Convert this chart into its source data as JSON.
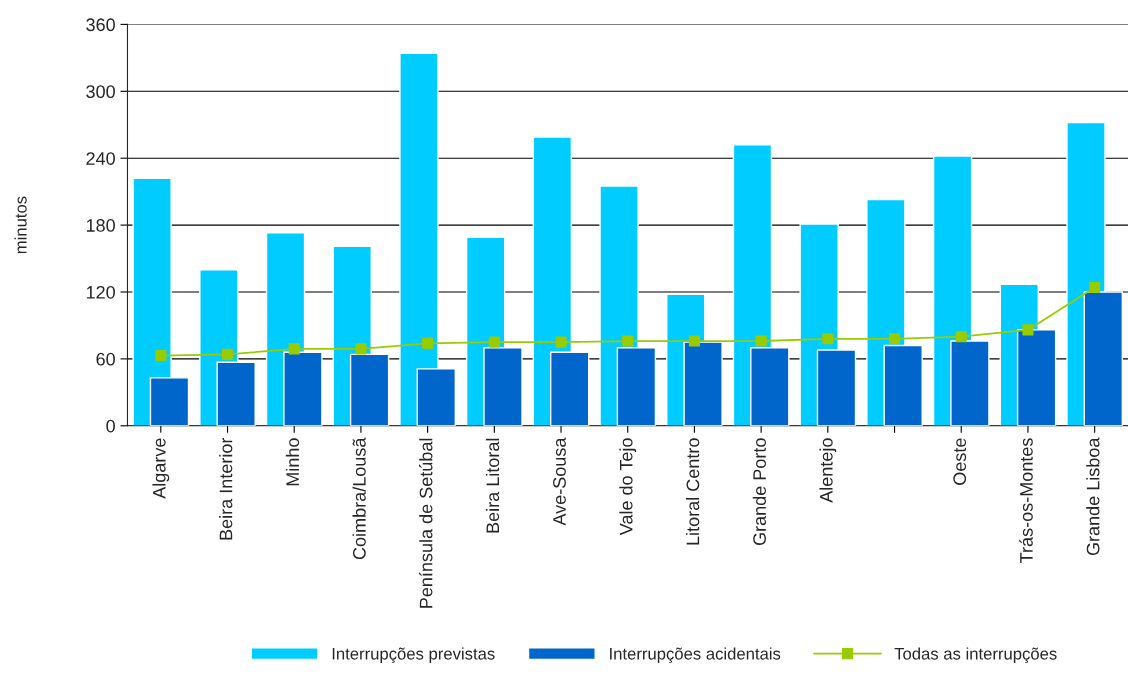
{
  "chart_data": {
    "type": "bar",
    "ylabel": "minutos",
    "categories": [
      "Algarve",
      "Beira Interior",
      "Minho",
      "Coimbra/Lousã",
      "Península de Setúbal",
      "Beira Litoral",
      "Ave-Sousa",
      "Vale do Tejo",
      "Litoral Centro",
      "Grande Porto",
      "Alentejo",
      null,
      "Oeste",
      "Trás-os-Montes",
      "Grande Lisboa"
    ],
    "series": [
      {
        "name": "Interrupções previstas",
        "color": "#00ccff",
        "values": [
          222,
          140,
          173,
          161,
          334,
          169,
          259,
          215,
          118,
          252,
          181,
          203,
          242,
          127,
          272
        ]
      },
      {
        "name": "Interrupções acidentais",
        "color": "#0066cc",
        "values": [
          43,
          57,
          66,
          64,
          51,
          70,
          66,
          70,
          75,
          70,
          68,
          72,
          76,
          86,
          120
        ]
      },
      {
        "name": "Todas as interrupções",
        "type": "line",
        "color": "#99cc00",
        "marker": "square",
        "values": [
          63,
          64,
          69,
          69,
          74,
          75,
          75,
          76,
          76,
          76,
          78,
          78,
          80,
          86,
          124
        ]
      }
    ],
    "ylim": [
      0,
      360
    ],
    "yticks": [
      0,
      60,
      120,
      180,
      240,
      300,
      360
    ],
    "grid": "y",
    "legend": "bottom"
  }
}
